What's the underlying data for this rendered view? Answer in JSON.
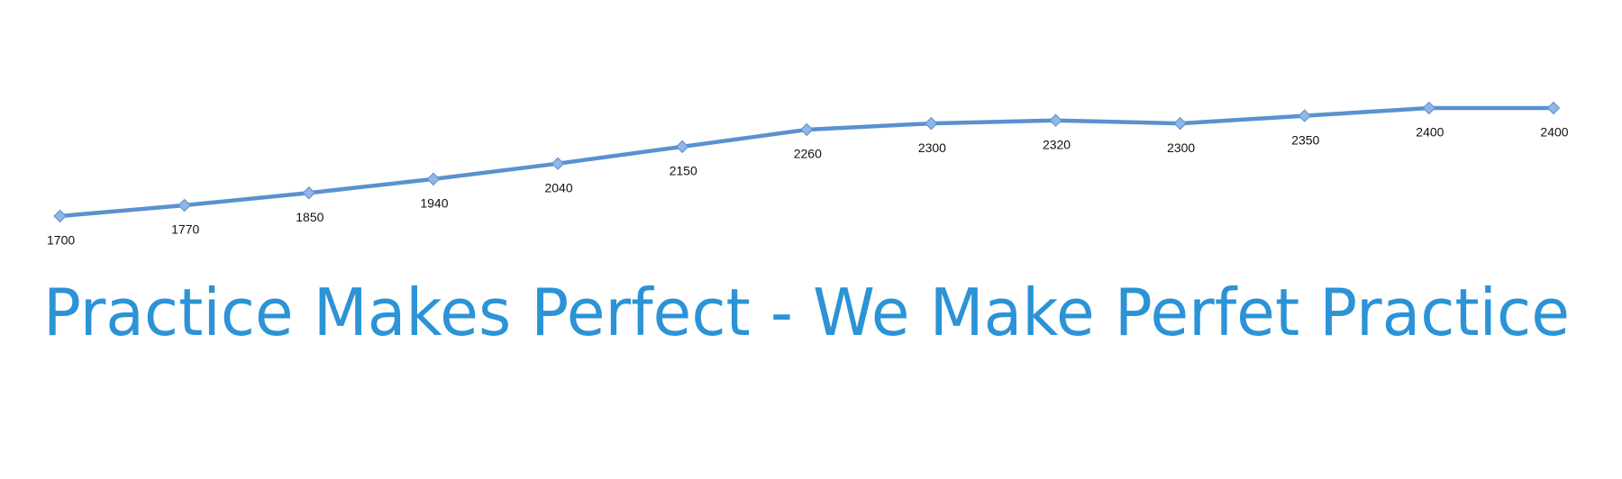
{
  "chart_data": {
    "type": "line",
    "title": "Practice Makes Perfect - We Make Perfet Practice",
    "values": [
      1700,
      1770,
      1850,
      1940,
      2040,
      2150,
      2260,
      2300,
      2320,
      2300,
      2350,
      2400,
      2400
    ],
    "color": "#5a91cf"
  }
}
